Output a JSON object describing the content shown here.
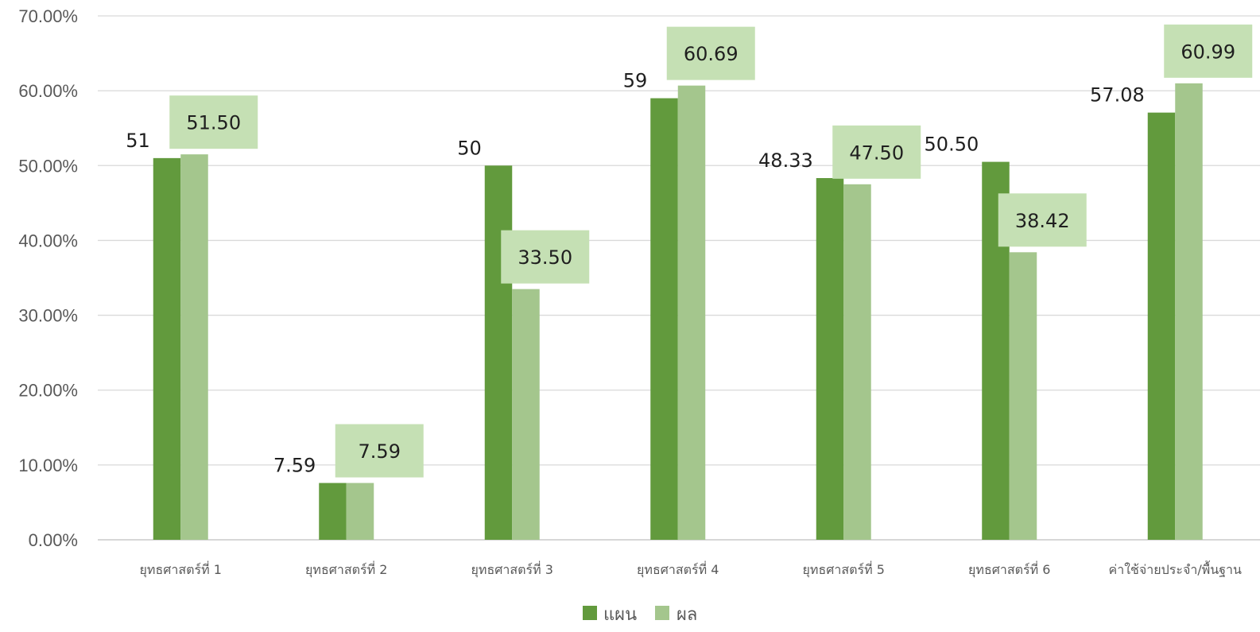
{
  "chart_data": {
    "type": "bar",
    "categories": [
      "ยุทธศาสตร์ที่ 1",
      "ยุทธศาสตร์ที่ 2",
      "ยุทธศาสตร์ที่ 3",
      "ยุทธศาสตร์ที่ 4",
      "ยุทธศาสตร์ที่ 5",
      "ยุทธศาสตร์ที่ 6",
      "ค่าใช้จ่ายประจำ/พื้นฐาน"
    ],
    "series": [
      {
        "name": "แผน",
        "color": "#629a3d",
        "values": [
          51,
          7.59,
          50,
          59,
          48.33,
          50.5,
          57.08
        ],
        "labels": [
          "51",
          "7.59",
          "50",
          "59",
          "48.33",
          "50.50",
          "57.08"
        ]
      },
      {
        "name": "ผล",
        "color": "#a4c68d",
        "values": [
          51.5,
          7.59,
          33.5,
          60.69,
          47.5,
          38.42,
          60.99
        ],
        "labels": [
          "51.50",
          "7.59",
          "33.50",
          "60.69",
          "47.50",
          "38.42",
          "60.99"
        ]
      }
    ],
    "label_box_color": "#c5e0b4",
    "y_ticks": [
      "0.00%",
      "10.00%",
      "20.00%",
      "30.00%",
      "40.00%",
      "50.00%",
      "60.00%",
      "70.00%"
    ],
    "ylim": [
      0,
      70
    ],
    "grid": true,
    "legend_position": "bottom"
  }
}
